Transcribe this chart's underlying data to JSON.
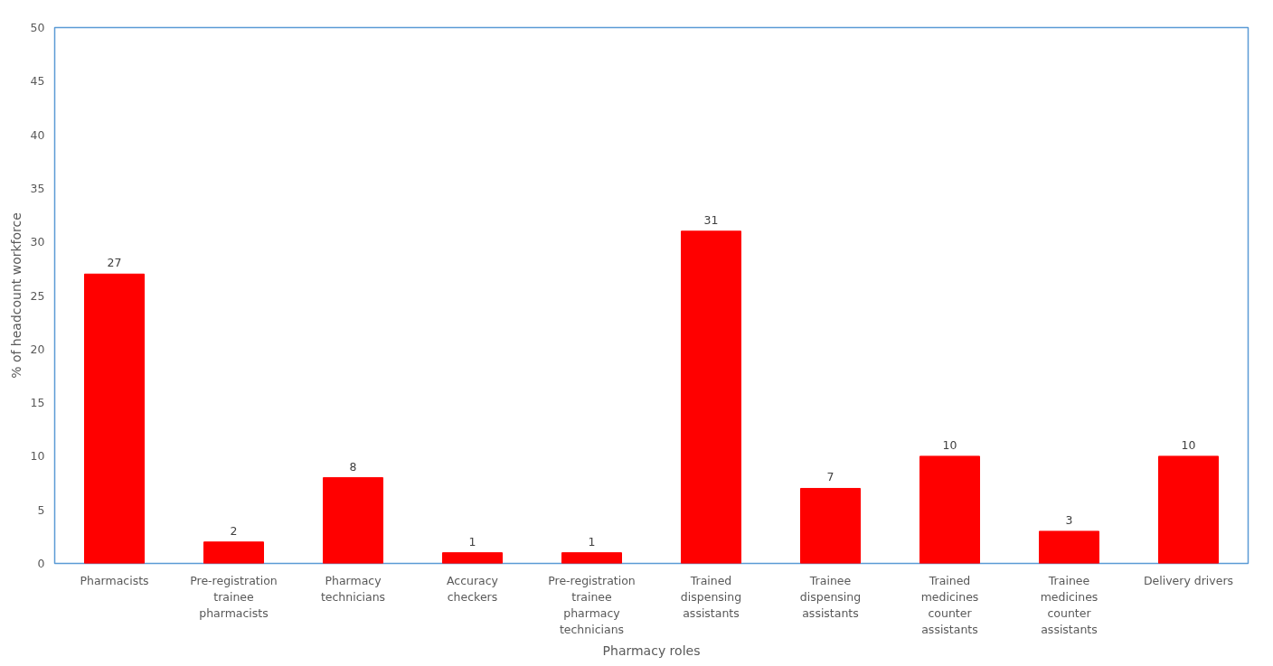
{
  "chart_data": {
    "type": "bar",
    "xlabel": "Pharmacy roles",
    "ylabel": "% of headcount workforce",
    "categories": [
      "Pharmacists",
      "Pre-registration trainee pharmacists",
      "Pharmacy technicians",
      "Accuracy checkers",
      "Pre-registration trainee pharmacy technicians",
      "Trained dispensing assistants",
      "Trainee dispensing assistants",
      "Trained medicines counter assistants",
      "Trainee medicines counter assistants",
      "Delivery drivers"
    ],
    "values": [
      27,
      2,
      8,
      1,
      1,
      31,
      7,
      10,
      3,
      10
    ],
    "color": "#ff0000",
    "ylim": [
      0,
      50
    ],
    "yticks": [
      0,
      5,
      10,
      15,
      20,
      25,
      30,
      35,
      40,
      45,
      50
    ],
    "data_labels": true,
    "grid": false
  }
}
